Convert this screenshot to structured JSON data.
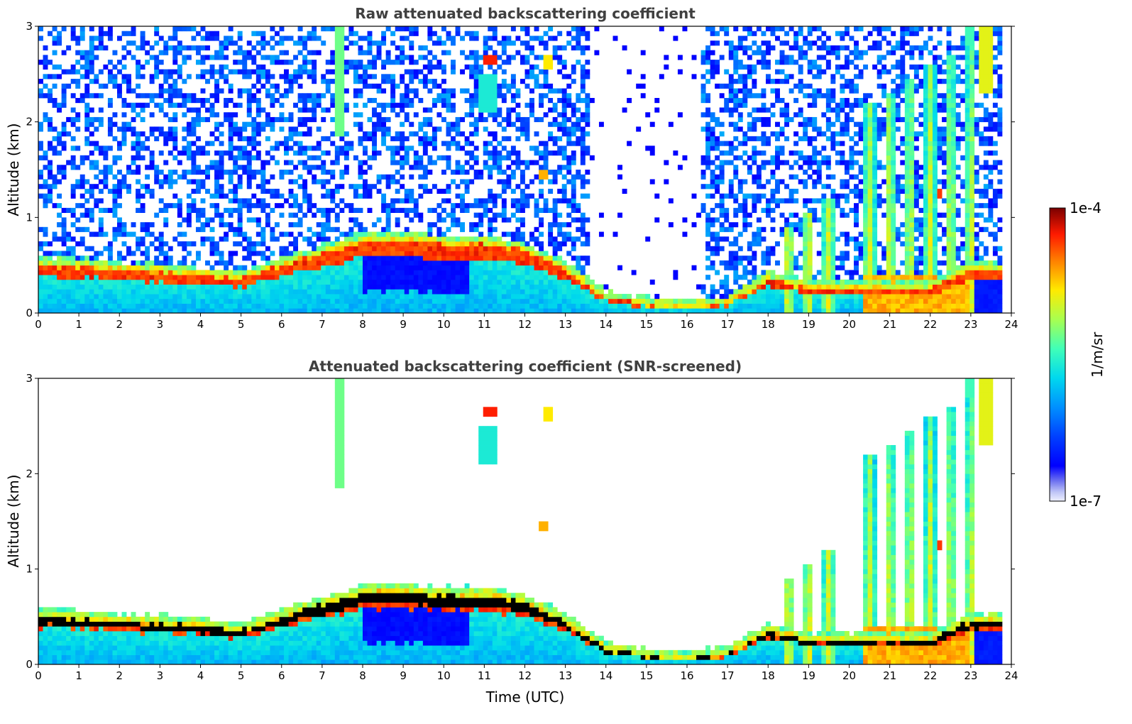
{
  "chart_data": [
    {
      "type": "heatmap",
      "title": "Raw attenuated backscattering coefficient",
      "xlabel": "",
      "ylabel": "Altitude (km)",
      "xlim": [
        0,
        24
      ],
      "ylim": [
        0,
        3
      ],
      "x_ticks": [
        "0",
        "1",
        "2",
        "3",
        "4",
        "5",
        "6",
        "7",
        "8",
        "9",
        "10",
        "11",
        "12",
        "13",
        "14",
        "15",
        "16",
        "17",
        "18",
        "19",
        "20",
        "21",
        "22",
        "23",
        "24"
      ],
      "y_ticks": [
        "0",
        "1",
        "2",
        "3"
      ],
      "colormap": "jet",
      "color_scale": "log",
      "features": {
        "boundary_layer_top_km": [
          [
            0,
            0.5
          ],
          [
            2,
            0.45
          ],
          [
            4,
            0.4
          ],
          [
            5,
            0.35
          ],
          [
            6,
            0.5
          ],
          [
            7,
            0.62
          ],
          [
            8,
            0.75
          ],
          [
            9,
            0.76
          ],
          [
            10,
            0.72
          ],
          [
            11,
            0.72
          ],
          [
            12,
            0.65
          ],
          [
            13,
            0.45
          ],
          [
            14,
            0.15
          ],
          [
            15,
            0.08
          ],
          [
            16,
            0.05
          ],
          [
            17,
            0.1
          ],
          [
            18,
            0.35
          ],
          [
            19,
            0.25
          ],
          [
            20,
            0.25
          ],
          [
            21,
            0.25
          ],
          [
            22,
            0.25
          ],
          [
            23,
            0.45
          ]
        ],
        "noise_region": "0-3 km, 0-13.5 UTC and 16.5-24 UTC",
        "clear_region": "13.5-16.5 UTC above 0.3 km",
        "precipitation_streaks_utc": [
          18.5,
          19,
          19.5,
          20.5,
          21,
          21.5,
          22,
          22.5,
          23
        ]
      }
    },
    {
      "type": "heatmap",
      "title": "Attenuated backscattering coefficient (SNR-screened)",
      "xlabel": "Time (UTC)",
      "ylabel": "Altitude (km)",
      "xlim": [
        0,
        24
      ],
      "ylim": [
        0,
        3
      ],
      "x_ticks": [
        "0",
        "1",
        "2",
        "3",
        "4",
        "5",
        "6",
        "7",
        "8",
        "9",
        "10",
        "11",
        "12",
        "13",
        "14",
        "15",
        "16",
        "17",
        "18",
        "19",
        "20",
        "21",
        "22",
        "23",
        "24"
      ],
      "y_ticks": [
        "0",
        "1",
        "2",
        "3"
      ],
      "colormap": "jet",
      "color_scale": "log",
      "features": {
        "screened": "noise above boundary layer removed",
        "isolated_cloud_patches": [
          [
            7.4,
            2.3
          ],
          [
            10.3,
            2.6
          ],
          [
            11,
            2.4
          ],
          [
            12.5,
            2.6
          ],
          [
            12.5,
            1.45
          ],
          [
            22,
            1.3
          ]
        ]
      }
    }
  ],
  "colorbar": {
    "label": "1/m/sr",
    "max_label": "1e-4",
    "min_label": "1e-7"
  },
  "colors": {
    "title": "#404040",
    "saturation": "#000000"
  }
}
